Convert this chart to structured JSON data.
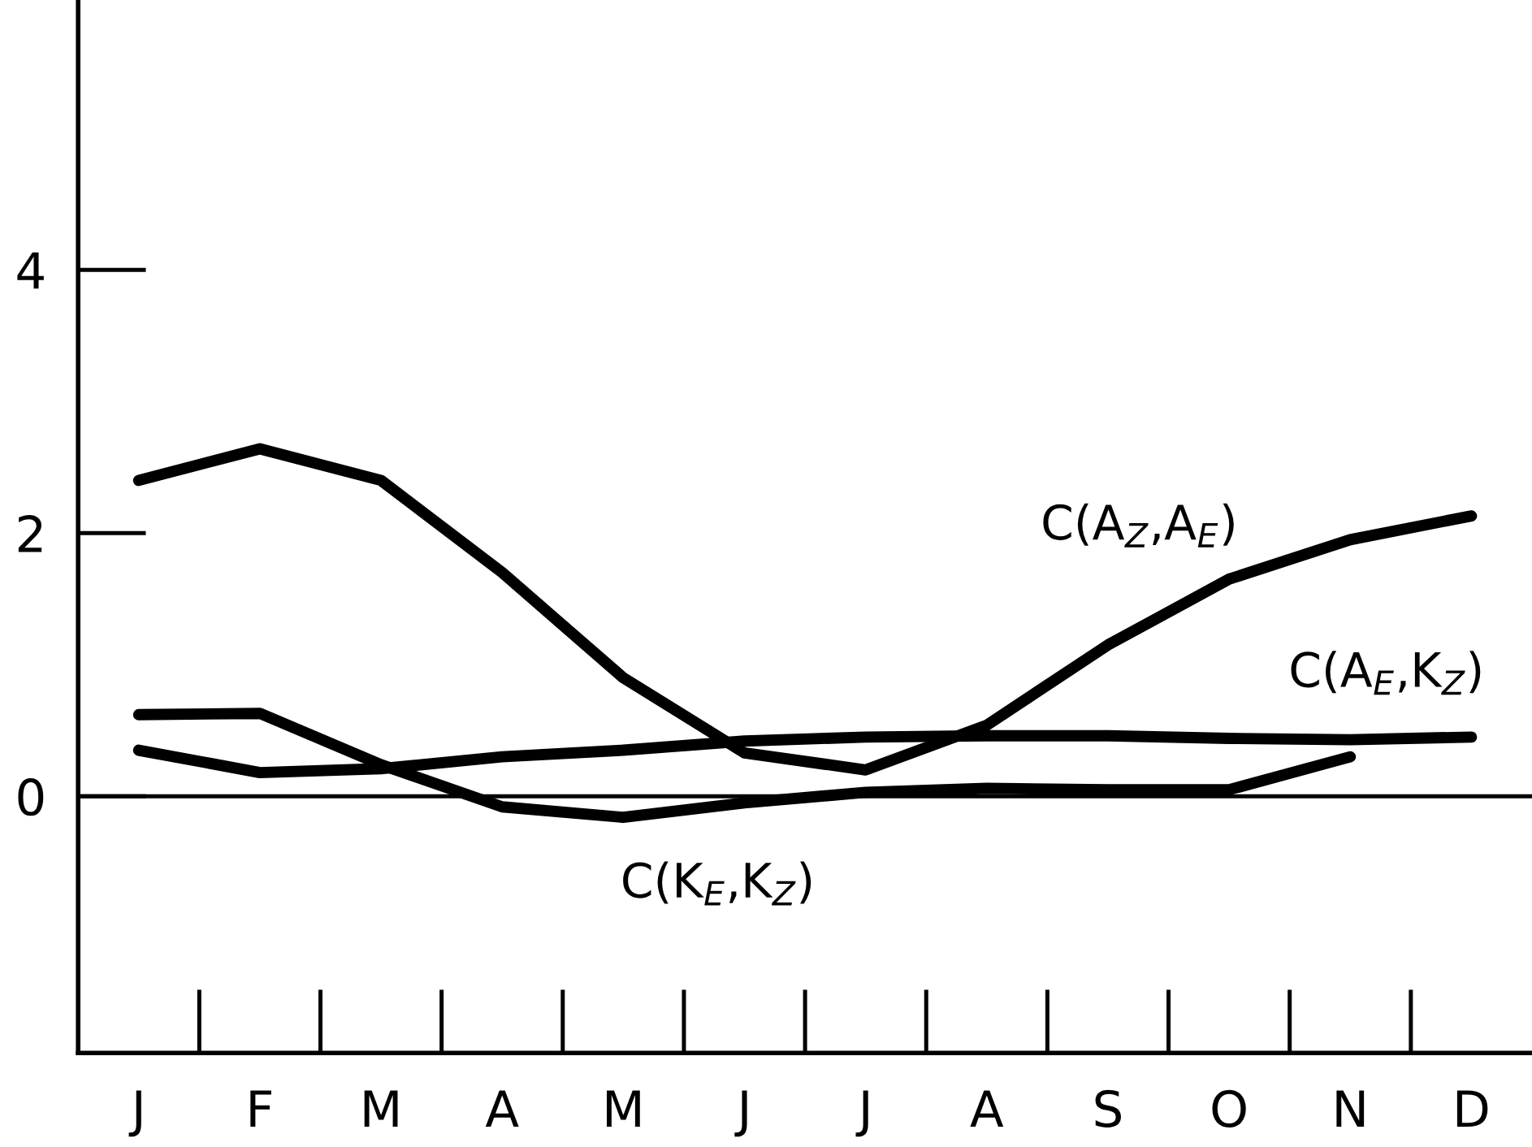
{
  "chart_data": {
    "type": "line",
    "categories": [
      "J",
      "F",
      "M",
      "A",
      "M",
      "J",
      "J",
      "A",
      "S",
      "O",
      "N",
      "D"
    ],
    "ylim": [
      -1.95,
      6.05
    ],
    "yticks": [
      0,
      2,
      4
    ],
    "grid": false,
    "legend": false,
    "marker": "none",
    "line_style": "solid",
    "ref_lines": [
      {
        "axis": "y",
        "value": 0,
        "color": "#000000"
      }
    ],
    "series": [
      {
        "name": "C(A$_{Z}$,A$_{E}$)",
        "color": "#000000",
        "values": [
          2.4,
          2.64,
          2.4,
          1.7,
          0.9,
          0.33,
          0.2,
          0.54,
          1.15,
          1.65,
          1.95,
          2.13
        ]
      },
      {
        "name": "C(A$_{E}$,K$_{Z}$)",
        "color": "#000000",
        "values": [
          0.35,
          0.18,
          0.21,
          0.3,
          0.35,
          0.42,
          0.45,
          0.46,
          0.46,
          0.44,
          0.43,
          0.45
        ]
      },
      {
        "name": "C(K$_{E}$,K$_{Z}$)",
        "color": "#000000",
        "values": [
          0.62,
          0.63,
          0.24,
          -0.08,
          -0.16,
          -0.05,
          0.03,
          0.06,
          0.05,
          0.05,
          0.3,
          null
        ]
      }
    ]
  }
}
